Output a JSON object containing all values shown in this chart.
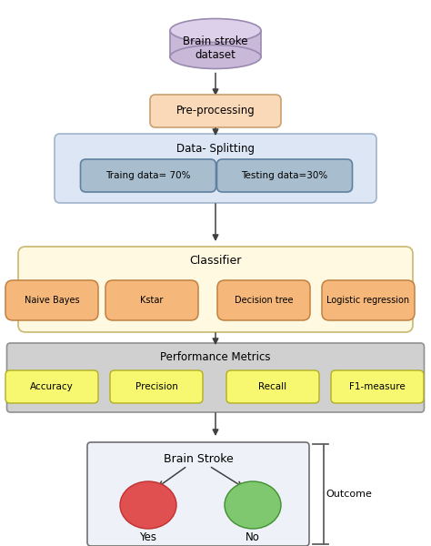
{
  "bg_color": "#ffffff",
  "cylinder_color": "#c9b8d8",
  "cylinder_edge": "#9a8ab0",
  "cylinder_top_color": "#ddd0ea",
  "cylinder_label": "Brain stroke\ndataset",
  "preprocessing_box_color": "#fad9b8",
  "preprocessing_box_edge": "#c8a070",
  "preprocessing_label": "Pre-processing",
  "datasplit_box_color": "#dce6f5",
  "datasplit_box_edge": "#a0b4cc",
  "datasplit_label": "Data- Splitting",
  "train_box_color": "#a8bece",
  "train_box_edge": "#6080a0",
  "train_label": "Traing data= 70%",
  "test_box_color": "#a8bece",
  "test_box_edge": "#6080a0",
  "test_label": "Testing data=30%",
  "classifier_box_color": "#fef9e0",
  "classifier_box_edge": "#c8b870",
  "classifier_label": "Classifier",
  "classifiers": [
    "Naive Bayes",
    "Kstar",
    "Decision tree",
    "Logistic regression"
  ],
  "classifier_item_color": "#f5b87a",
  "classifier_item_edge": "#c08040",
  "perf_box_color": "#d0d0d0",
  "perf_box_edge": "#909090",
  "perf_label": "Performance Metrics",
  "metrics": [
    "Accuracy",
    "Precision",
    "Recall",
    "F1-measure"
  ],
  "metric_item_color": "#f8f870",
  "metric_item_edge": "#b0b020",
  "outcome_box_color": "#eef2f8",
  "outcome_box_edge": "#707070",
  "outcome_label": "Brain Stroke",
  "yes_color": "#e05050",
  "yes_edge": "#c03030",
  "no_color": "#80c870",
  "no_edge": "#409030",
  "yes_label": "Yes",
  "no_label": "No",
  "outcome_text": "Outcome",
  "arrow_color": "#404040"
}
